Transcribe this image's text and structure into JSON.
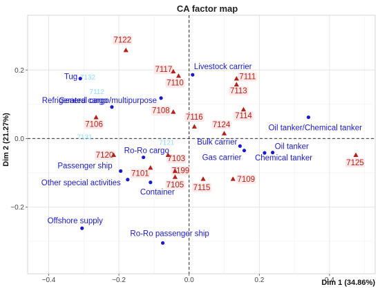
{
  "chart_data": {
    "type": "scatter",
    "title": "CA factor map",
    "xlabel": "Dim 1 (34.86%)",
    "ylabel": "Dim 2 (21.27%)",
    "xlim": [
      -0.46,
      0.53
    ],
    "ylim": [
      -0.395,
      0.36
    ],
    "xticks": [
      -0.4,
      -0.2,
      0.0,
      0.2,
      0.4
    ],
    "xtick_labels": [
      "−0.4",
      "−0.2",
      "0.0",
      "0.2",
      "0.4"
    ],
    "yticks": [
      -0.2,
      0.0,
      0.2
    ],
    "ytick_labels": [
      "−0.2",
      "0.0",
      "0.2"
    ],
    "grid": true,
    "reference_lines": {
      "x": 0,
      "y": 0,
      "style": "dashed"
    },
    "series": [
      {
        "name": "rows",
        "color": "#1a1acc",
        "marker": "circle",
        "points": [
          {
            "label": "Tug",
            "x": -0.31,
            "y": 0.175
          },
          {
            "label": "General cargo/multipurpose",
            "x": -0.08,
            "y": 0.118
          },
          {
            "label": "Refrigerated cargo",
            "x": -0.22,
            "y": 0.092
          },
          {
            "label": "Livestock carrier",
            "x": 0.01,
            "y": 0.186
          },
          {
            "label": "Oil tanker/Chemical tanker",
            "x": 0.34,
            "y": 0.062
          },
          {
            "label": "Bulk carrier",
            "x": 0.145,
            "y": -0.022
          },
          {
            "label": "Oil tanker",
            "x": 0.238,
            "y": -0.041
          },
          {
            "label": "Chemical tanker",
            "x": 0.215,
            "y": -0.042
          },
          {
            "label": "Gas carrier",
            "x": 0.157,
            "y": -0.035
          },
          {
            "label": "Ro-Ro cargo",
            "x": -0.13,
            "y": -0.055
          },
          {
            "label": "Passenger ship",
            "x": -0.195,
            "y": -0.095
          },
          {
            "label": "Other special activities",
            "x": -0.175,
            "y": -0.12
          },
          {
            "label": "Container",
            "x": -0.11,
            "y": -0.128
          },
          {
            "label": "Offshore supply",
            "x": -0.305,
            "y": -0.262
          },
          {
            "label": "Ro-Ro passenger ship",
            "x": -0.075,
            "y": -0.305
          }
        ]
      },
      {
        "name": "columns",
        "color": "#b3211b",
        "marker": "triangle",
        "points": [
          {
            "label": "7122",
            "x": -0.18,
            "y": 0.258
          },
          {
            "label": "7117",
            "x": -0.045,
            "y": 0.196
          },
          {
            "label": "7110",
            "x": -0.03,
            "y": 0.183
          },
          {
            "label": "7111",
            "x": 0.135,
            "y": 0.175
          },
          {
            "label": "7113",
            "x": 0.135,
            "y": 0.158
          },
          {
            "label": "7108",
            "x": -0.045,
            "y": 0.078
          },
          {
            "label": "7114",
            "x": 0.155,
            "y": 0.085
          },
          {
            "label": "7106",
            "x": -0.265,
            "y": 0.062
          },
          {
            "label": "7116",
            "x": 0.015,
            "y": 0.035
          },
          {
            "label": "7124",
            "x": 0.1,
            "y": 0.015
          },
          {
            "label": "7125",
            "x": 0.475,
            "y": -0.048
          },
          {
            "label": "7120",
            "x": -0.215,
            "y": -0.048
          },
          {
            "label": "7103",
            "x": -0.06,
            "y": -0.048
          },
          {
            "label": "7101",
            "x": -0.11,
            "y": -0.085
          },
          {
            "label": "7199",
            "x": -0.04,
            "y": -0.095
          },
          {
            "label": "7105",
            "x": -0.04,
            "y": -0.112
          },
          {
            "label": "7115",
            "x": 0.04,
            "y": -0.118
          },
          {
            "label": "7109",
            "x": 0.125,
            "y": -0.118
          }
        ]
      },
      {
        "name": "supplementary",
        "color": "#8fdcf4",
        "marker": "none",
        "points": [
          {
            "label": "7132",
            "x": -0.285,
            "y": 0.18
          },
          {
            "label": "7112",
            "x": -0.255,
            "y": 0.138
          },
          {
            "label": "7131",
            "x": -0.26,
            "y": 0.006
          },
          {
            "label": "7121",
            "x": -0.06,
            "y": -0.01
          }
        ]
      }
    ]
  }
}
